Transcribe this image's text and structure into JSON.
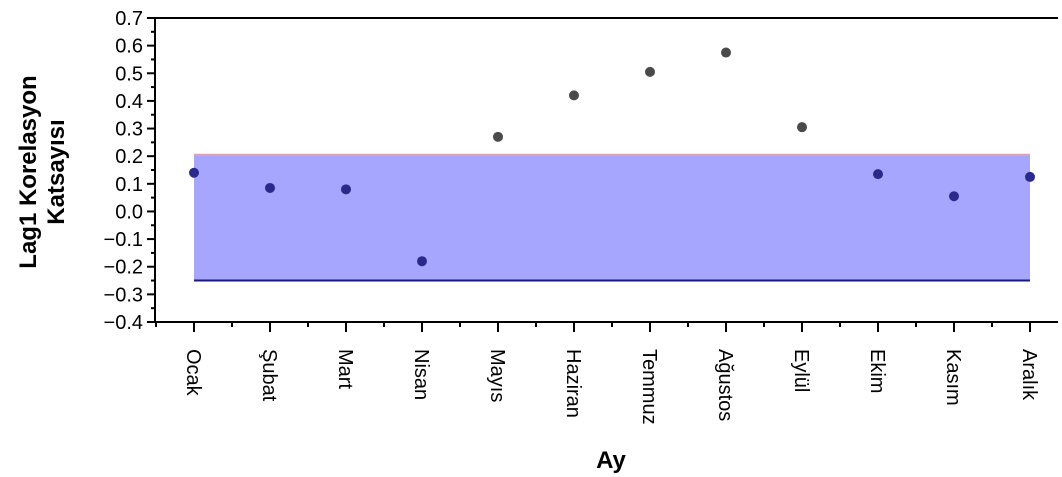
{
  "chart_data": {
    "type": "scatter",
    "title": "",
    "xlabel": "Ay",
    "ylabel_lines": [
      "Lag1 Korelasyon",
      "Katsayısı"
    ],
    "categories": [
      "Ocak",
      "Şubat",
      "Mart",
      "Nisan",
      "Mayıs",
      "Haziran",
      "Temmuz",
      "Ağustos",
      "Eylül",
      "Ekim",
      "Kasım",
      "Aralık"
    ],
    "values": [
      0.14,
      0.085,
      0.08,
      -0.18,
      0.27,
      0.42,
      0.505,
      0.575,
      0.305,
      0.135,
      0.055,
      0.125
    ],
    "ylim": [
      -0.4,
      0.7
    ],
    "yticks": [
      "0.7",
      "0.6",
      "0.5",
      "0.4",
      "0.3",
      "0.2",
      "0.1",
      "0.0",
      "−0.1",
      "−0.2",
      "−0.3",
      "−0.4"
    ],
    "ytick_values": [
      0.7,
      0.6,
      0.5,
      0.4,
      0.3,
      0.2,
      0.1,
      0.0,
      -0.1,
      -0.2,
      -0.3,
      -0.4
    ],
    "confidence_band": {
      "upper": 0.205,
      "lower": -0.25
    },
    "grid": false,
    "colors": {
      "point_outside": "#4a4a4a",
      "point_inside": "#2a2a8c",
      "band_fill": "#a6a6ff",
      "band_upper_line": "#e0a0b8",
      "band_lower_line": "#1a1a7a"
    }
  }
}
